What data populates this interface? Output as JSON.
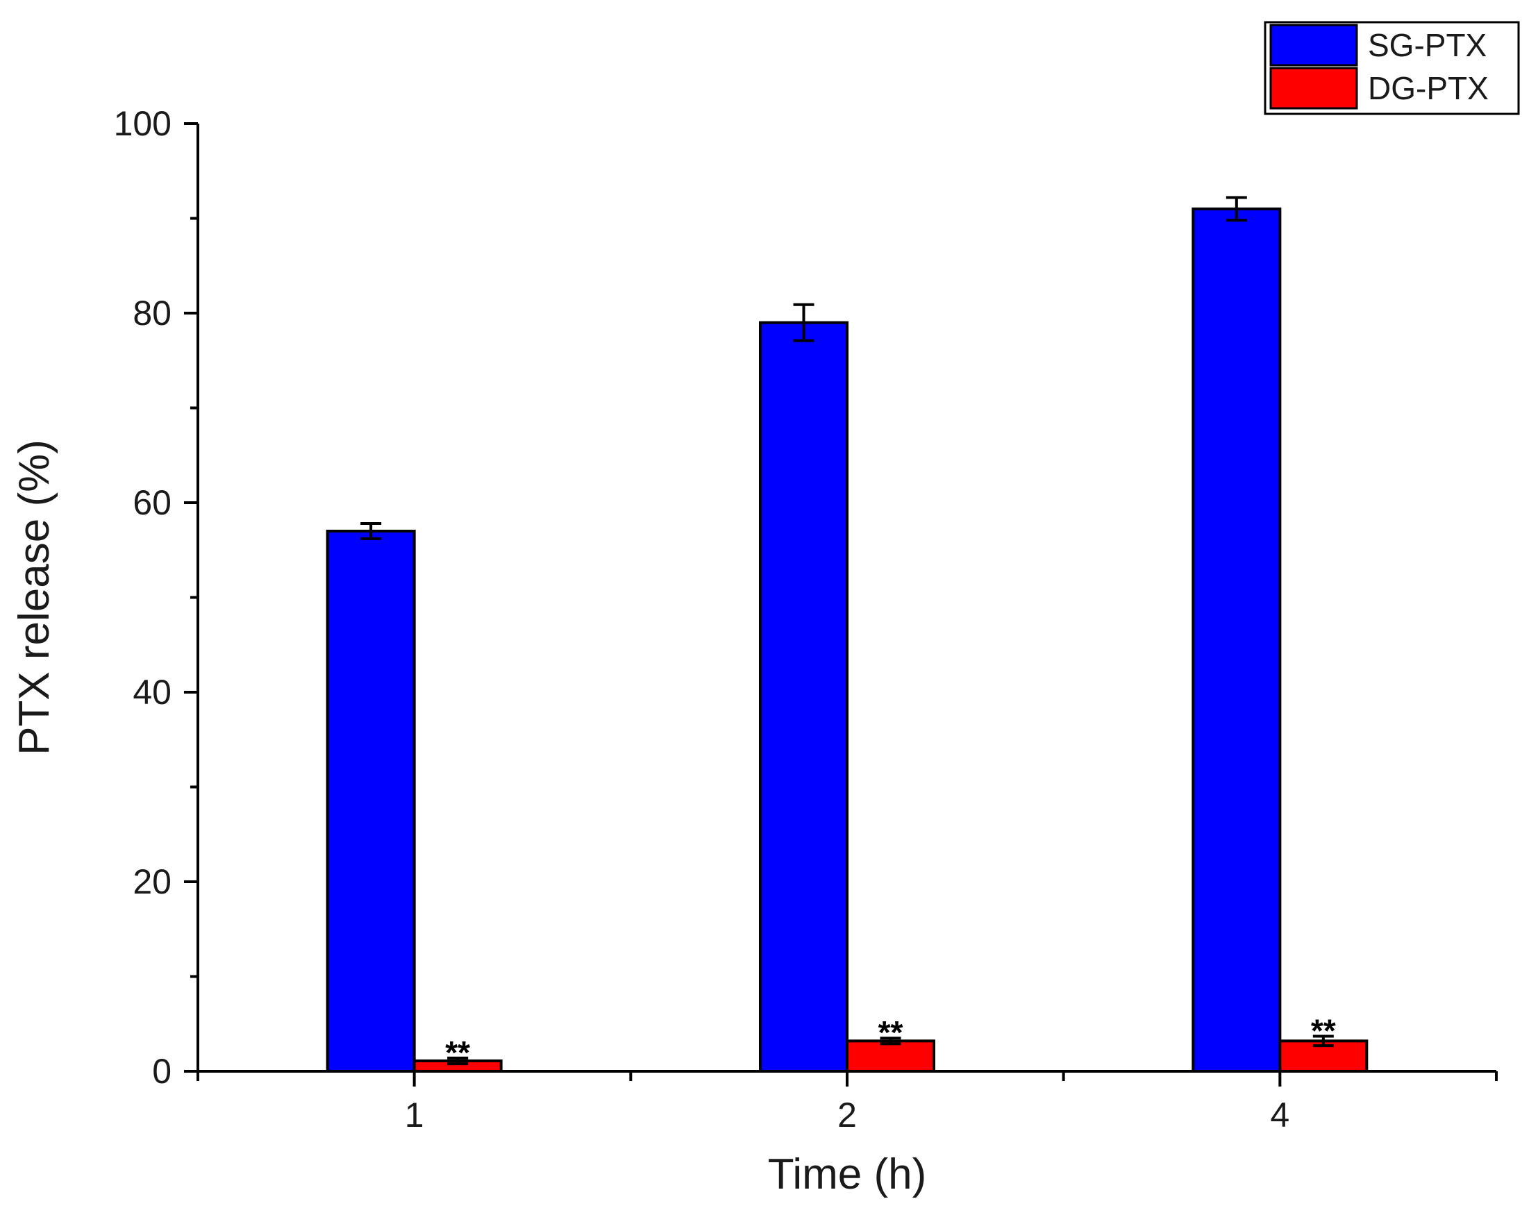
{
  "chart_data": {
    "type": "bar",
    "categories": [
      "1",
      "2",
      "4"
    ],
    "xlabel": "Time (h)",
    "ylabel": "PTX release (%)",
    "ylim": [
      0,
      100
    ],
    "yticks": [
      0,
      20,
      40,
      60,
      80,
      100
    ],
    "grid": false,
    "legend_position": "top-right",
    "series": [
      {
        "name": "SG-PTX",
        "color": "#0000ff",
        "values": [
          57,
          79,
          91
        ],
        "errors": [
          0.8,
          1.9,
          1.2
        ],
        "annotations": [
          "",
          "",
          ""
        ]
      },
      {
        "name": "DG-PTX",
        "color": "#ff0000",
        "values": [
          1.1,
          3.2,
          3.2
        ],
        "errors": [
          0.3,
          0.3,
          0.5
        ],
        "annotations": [
          "**",
          "**",
          "**"
        ]
      }
    ]
  }
}
